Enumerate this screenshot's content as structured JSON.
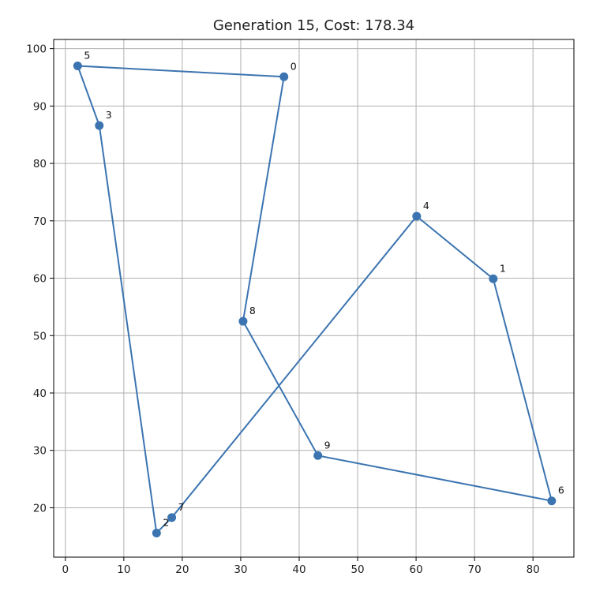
{
  "chart_data": {
    "type": "line",
    "title": "Generation 15, Cost: 178.34",
    "xlabel": "",
    "ylabel": "",
    "xlim": [
      -2,
      87
    ],
    "ylim": [
      11.4,
      101.6
    ],
    "xticks": [
      0,
      10,
      20,
      30,
      40,
      50,
      60,
      70,
      80
    ],
    "yticks": [
      20,
      30,
      40,
      50,
      60,
      70,
      80,
      90,
      100
    ],
    "grid": true,
    "line_color": "#3b74b0",
    "points": [
      {
        "label": "0",
        "x": 37.4,
        "y": 95.1
      },
      {
        "label": "1",
        "x": 73.2,
        "y": 59.9
      },
      {
        "label": "2",
        "x": 15.6,
        "y": 15.6
      },
      {
        "label": "3",
        "x": 5.8,
        "y": 86.6
      },
      {
        "label": "4",
        "x": 60.1,
        "y": 70.8
      },
      {
        "label": "5",
        "x": 2.1,
        "y": 97.0
      },
      {
        "label": "6",
        "x": 83.2,
        "y": 21.2
      },
      {
        "label": "7",
        "x": 18.2,
        "y": 18.3
      },
      {
        "label": "8",
        "x": 30.4,
        "y": 52.5
      },
      {
        "label": "9",
        "x": 43.2,
        "y": 29.1
      }
    ],
    "tour": [
      "0",
      "8",
      "9",
      "6",
      "1",
      "4",
      "7",
      "2",
      "3",
      "5",
      "0"
    ]
  }
}
